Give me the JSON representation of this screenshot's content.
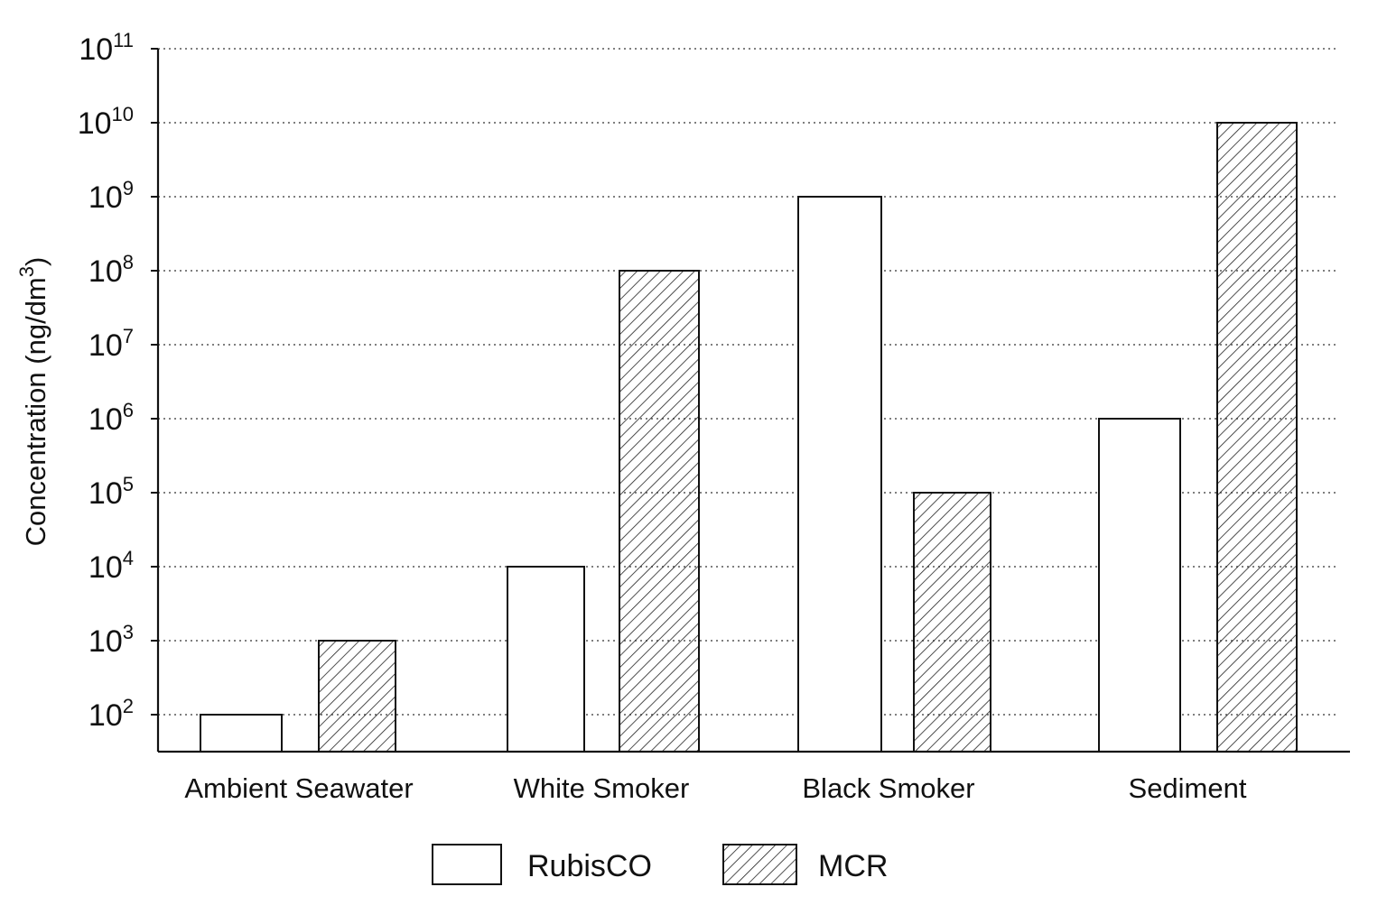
{
  "chart_data": {
    "type": "bar",
    "categories": [
      "Ambient Seawater",
      "White Smoker",
      "Black Smoker",
      "Sediment"
    ],
    "series": [
      {
        "name": "RubisCO",
        "values": [
          100,
          10000,
          1000000000,
          1000000
        ],
        "fill": "#ffffff",
        "pattern": "none"
      },
      {
        "name": "MCR",
        "values": [
          1000,
          100000000,
          100000,
          10000000000
        ],
        "fill": "#ffffff",
        "pattern": "hatch"
      }
    ],
    "title": "",
    "xlabel": "",
    "ylabel": {
      "text": "Concentration (ng/dm",
      "sup": "3",
      "suffix": ")"
    },
    "yscale": "log",
    "ylim": [
      50,
      100000000000
    ],
    "yticks": [
      {
        "base": "10",
        "exp": "2"
      },
      {
        "base": "10",
        "exp": "3"
      },
      {
        "base": "10",
        "exp": "4"
      },
      {
        "base": "10",
        "exp": "5"
      },
      {
        "base": "10",
        "exp": "6"
      },
      {
        "base": "10",
        "exp": "7"
      },
      {
        "base": "10",
        "exp": "8"
      },
      {
        "base": "10",
        "exp": "9"
      },
      {
        "base": "10",
        "exp": "10"
      },
      {
        "base": "10",
        "exp": "11"
      }
    ],
    "grid": "horizontal-dotted",
    "legend_position": "bottom-center",
    "colors": {
      "axis": "#111111",
      "grid": "#555555",
      "bar_stroke": "#111111",
      "hatch": "#222222"
    }
  }
}
